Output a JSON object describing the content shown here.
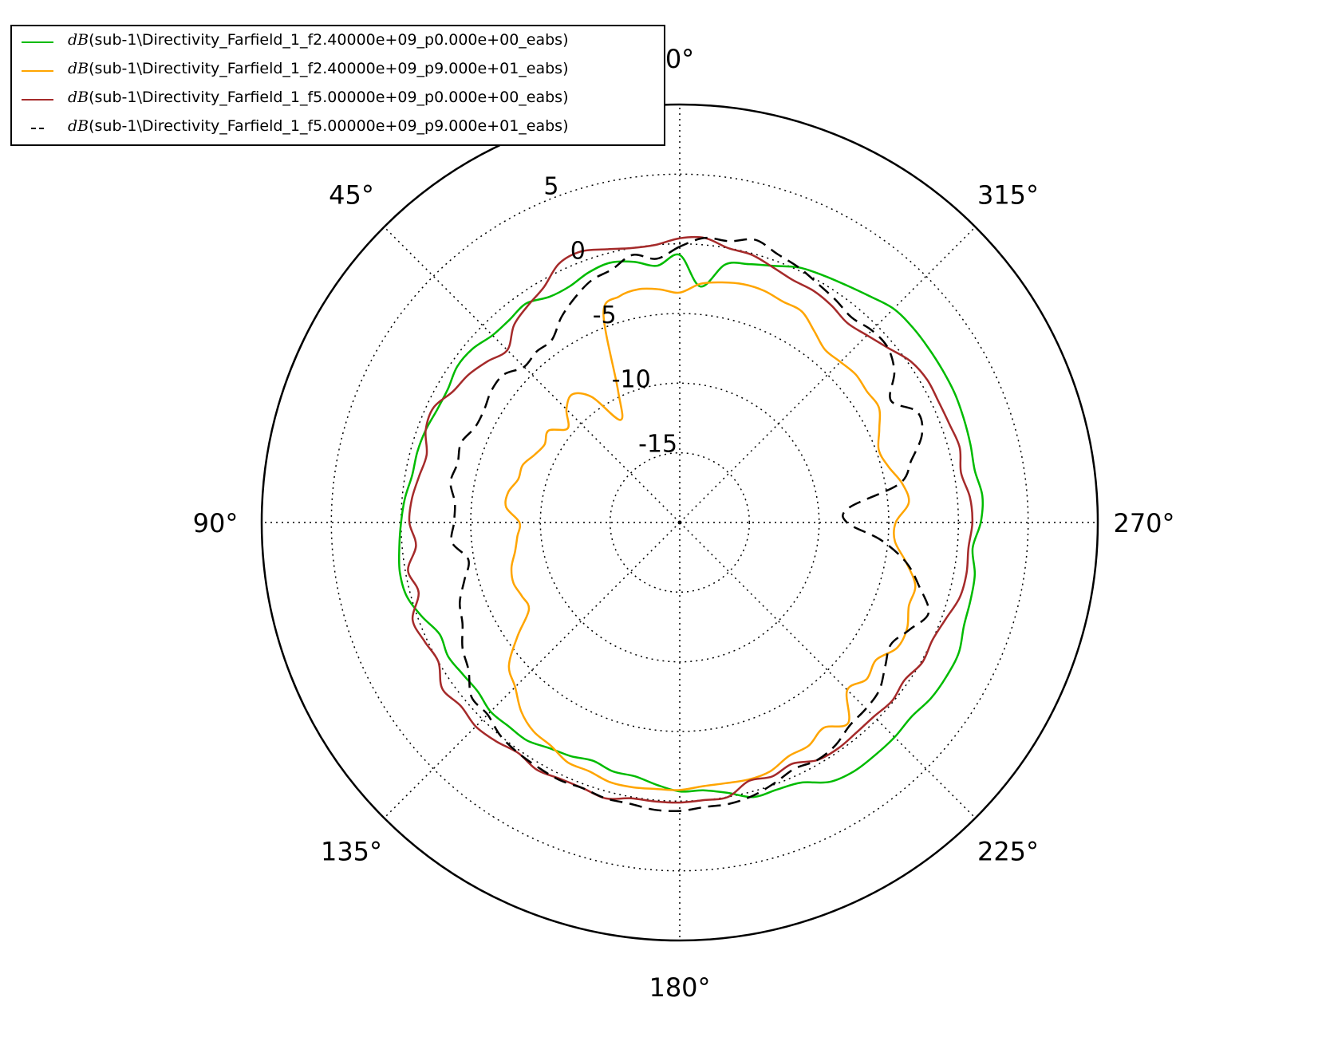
{
  "chart_data": {
    "type": "polar-line",
    "angle_direction": "counterclockwise",
    "zero_location": "top",
    "angle_ticks": [
      {
        "deg": 0,
        "label": "0°"
      },
      {
        "deg": 45,
        "label": "45°"
      },
      {
        "deg": 90,
        "label": "90°"
      },
      {
        "deg": 135,
        "label": "135°"
      },
      {
        "deg": 180,
        "label": "180°"
      },
      {
        "deg": 225,
        "label": "225°"
      },
      {
        "deg": 270,
        "label": "270°"
      },
      {
        "deg": 315,
        "label": "315°"
      }
    ],
    "radial_range": [
      -20,
      10
    ],
    "radial_ticks": [
      {
        "value": -15,
        "label": "-15"
      },
      {
        "value": -10,
        "label": "-10"
      },
      {
        "value": -5,
        "label": "-5"
      },
      {
        "value": 0,
        "label": "0"
      },
      {
        "value": 5,
        "label": "5"
      }
    ],
    "grid": true,
    "legend_position": "top-left",
    "series": [
      {
        "name_prefix": "dB",
        "name": "(sub-1\\Directivity_Farfield_1_f2.40000e+09_p0.000e+00_eabs)",
        "color": "#00bb00",
        "dash": "solid",
        "angles": [
          0,
          5,
          10,
          15,
          20,
          25,
          30,
          35,
          40,
          45,
          50,
          55,
          60,
          65,
          70,
          75,
          80,
          85,
          90,
          95,
          100,
          105,
          110,
          115,
          120,
          125,
          130,
          135,
          140,
          145,
          150,
          155,
          160,
          165,
          170,
          175,
          180,
          185,
          190,
          195,
          200,
          205,
          210,
          215,
          220,
          225,
          230,
          235,
          240,
          245,
          250,
          255,
          260,
          265,
          270,
          275,
          280,
          285,
          290,
          295,
          300,
          305,
          310,
          315,
          320,
          325,
          330,
          335,
          340,
          345,
          350,
          355
        ],
        "values": [
          -0.8,
          -1.5,
          -1.0,
          -0.7,
          -0.9,
          -1.3,
          -1.3,
          -0.8,
          -1.0,
          -1.0,
          -0.6,
          -0.5,
          -0.8,
          -0.8,
          -0.6,
          -0.5,
          -0.5,
          -0.2,
          0.0,
          0.2,
          0.4,
          0.3,
          -0.3,
          -1.0,
          -0.8,
          -1.0,
          -1.1,
          -0.8,
          -0.9,
          -0.9,
          -1.3,
          -1.5,
          -1.8,
          -1.5,
          -1.5,
          -1.1,
          -0.7,
          -0.7,
          -0.3,
          0.4,
          0.4,
          0.6,
          1.5,
          1.8,
          1.8,
          1.8,
          1.7,
          2.0,
          2.1,
          2.1,
          1.7,
          1.6,
          1.5,
          1.1,
          1.6,
          1.8,
          1.5,
          1.6,
          1.7,
          1.8,
          1.8,
          1.8,
          1.8,
          1.7,
          1.2,
          0.8,
          0.5,
          0.2,
          -0.4,
          -0.8,
          -1.2,
          -3.0
        ]
      },
      {
        "name_prefix": "dB",
        "name": "(sub-1\\Directivity_Farfield_1_f2.40000e+09_p9.000e+01_eabs)",
        "color": "#ffa500",
        "dash": "solid",
        "angles": [
          0,
          5,
          10,
          15,
          20,
          25,
          30,
          35,
          40,
          45,
          50,
          55,
          60,
          65,
          70,
          75,
          80,
          85,
          90,
          95,
          100,
          105,
          110,
          115,
          120,
          125,
          130,
          135,
          140,
          145,
          150,
          155,
          160,
          165,
          170,
          175,
          180,
          185,
          190,
          195,
          200,
          205,
          210,
          215,
          220,
          225,
          230,
          235,
          240,
          245,
          250,
          255,
          260,
          265,
          270,
          275,
          280,
          285,
          290,
          295,
          300,
          305,
          310,
          315,
          320,
          325,
          330,
          335,
          340,
          345,
          350,
          355
        ],
        "values": [
          -3.5,
          -3.2,
          -3.0,
          -3.2,
          -4.0,
          -9.5,
          -11.5,
          -9.0,
          -8.0,
          -8.5,
          -9.5,
          -8.5,
          -8.8,
          -8.5,
          -8.0,
          -8.0,
          -7.5,
          -7.5,
          -8.5,
          -8.3,
          -8.0,
          -7.5,
          -7.3,
          -7.5,
          -7.5,
          -5.8,
          -4.0,
          -3.3,
          -2.3,
          -1.7,
          -1.5,
          -1.0,
          -1.0,
          -0.7,
          -0.7,
          -0.8,
          -0.8,
          -1.0,
          -1.0,
          -0.9,
          -1.0,
          -1.5,
          -1.5,
          -2.0,
          -1.2,
          -3.0,
          -2.5,
          -2.8,
          -2.0,
          -2.0,
          -2.5,
          -2.5,
          -3.5,
          -4.5,
          -4.5,
          -3.5,
          -3.8,
          -4.5,
          -4.8,
          -4.2,
          -3.5,
          -3.6,
          -3.5,
          -3.7,
          -3.8,
          -3.2,
          -2.5,
          -2.5,
          -2.3,
          -2.3,
          -2.5,
          -2.8
        ]
      },
      {
        "name_prefix": "dB",
        "name": "(sub-1\\Directivity_Farfield_1_f5.00000e+09_p0.000e+00_eabs)",
        "color": "#a52a2a",
        "dash": "solid",
        "angles": [
          0,
          5,
          10,
          15,
          20,
          25,
          30,
          35,
          40,
          45,
          50,
          55,
          60,
          65,
          70,
          75,
          80,
          85,
          90,
          95,
          100,
          105,
          110,
          115,
          120,
          125,
          130,
          135,
          140,
          145,
          150,
          155,
          160,
          165,
          170,
          175,
          180,
          185,
          190,
          195,
          200,
          205,
          210,
          215,
          220,
          225,
          230,
          235,
          240,
          245,
          250,
          255,
          260,
          265,
          270,
          275,
          280,
          285,
          290,
          295,
          300,
          305,
          310,
          315,
          320,
          325,
          330,
          335,
          340,
          345,
          350,
          355
        ],
        "values": [
          0.4,
          0.0,
          0.0,
          0.3,
          0.7,
          0.5,
          -0.5,
          -1.0,
          -1.5,
          -2.5,
          -2.0,
          -1.5,
          -1.2,
          -0.5,
          -0.6,
          -1.2,
          -1.0,
          -0.7,
          -0.6,
          -1.0,
          -0.2,
          -0.6,
          0.4,
          0.2,
          0.0,
          0.8,
          0.5,
          0.7,
          0.5,
          0.2,
          0.5,
          0.3,
          0.3,
          0.5,
          0.1,
          0.1,
          0.1,
          0.0,
          0.0,
          -0.8,
          -0.6,
          -0.9,
          -0.3,
          -0.2,
          -0.3,
          -0.3,
          -0.1,
          -0.3,
          0.1,
          0.0,
          0.3,
          0.8,
          0.9,
          0.8,
          1.0,
          0.9,
          0.5,
          0.8,
          0.6,
          0.5,
          0.5,
          0.2,
          -0.5,
          -1.0,
          -1.3,
          -1.0,
          -0.8,
          -0.8,
          -0.5,
          -0.1,
          0.0,
          0.5
        ]
      },
      {
        "name_prefix": "dB",
        "name": "(sub-1\\Directivity_Farfield_1_f5.00000e+09_p9.000e+01_eabs)",
        "color": "#000000",
        "dash": "dashed",
        "angles": [
          0,
          5,
          10,
          15,
          20,
          25,
          30,
          35,
          40,
          45,
          50,
          55,
          60,
          65,
          70,
          75,
          80,
          85,
          90,
          95,
          100,
          105,
          110,
          115,
          120,
          125,
          130,
          135,
          140,
          145,
          150,
          155,
          160,
          165,
          170,
          175,
          180,
          185,
          190,
          195,
          200,
          205,
          210,
          215,
          220,
          225,
          230,
          235,
          240,
          245,
          250,
          255,
          260,
          265,
          270,
          275,
          280,
          285,
          290,
          295,
          300,
          305,
          310,
          315,
          320,
          325,
          330,
          335,
          340,
          345,
          350,
          355
        ],
        "values": [
          -0.2,
          -1.0,
          -0.5,
          -1.2,
          -1.5,
          -2.2,
          -3.0,
          -4.0,
          -4.0,
          -4.2,
          -3.5,
          -3.5,
          -3.8,
          -3.8,
          -3.3,
          -3.5,
          -3.3,
          -3.8,
          -3.8,
          -3.6,
          -4.6,
          -4.0,
          -3.2,
          -2.8,
          -2.0,
          -1.5,
          -0.5,
          -0.5,
          0.0,
          0.2,
          0.3,
          0.4,
          0.3,
          0.5,
          0.5,
          0.7,
          0.7,
          0.5,
          0.5,
          0.3,
          -0.1,
          -0.5,
          -0.3,
          -0.5,
          -1.0,
          -1.1,
          -1.3,
          -2.0,
          -2.5,
          -1.8,
          -1.0,
          -2.2,
          -3.5,
          -5.5,
          -8.0,
          -7.8,
          -4.0,
          -2.8,
          -1.5,
          -1.2,
          -2.5,
          -1.2,
          -0.5,
          -0.5,
          -0.8,
          -0.5,
          -0.2,
          0.2,
          0.5,
          1.0,
          0.5,
          0.5
        ]
      }
    ]
  }
}
